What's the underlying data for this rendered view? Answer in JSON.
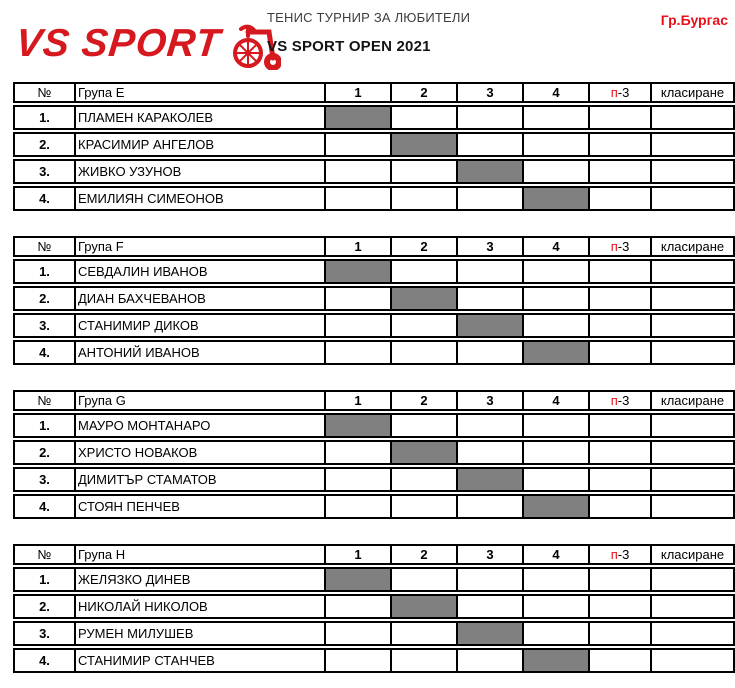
{
  "header": {
    "logo_text": "VS SPORT",
    "tournament_title": "ТЕНИС ТУРНИР ЗА ЛЮБИТЕЛИ",
    "event_title": "VS SPORT OPEN 2021",
    "city": "Гр.Бургас"
  },
  "colors": {
    "brand_red": "#d6181f",
    "accent_red": "#e8101a",
    "grid_black": "#000000",
    "diagonal_gray": "#808080"
  },
  "table": {
    "number_header": "№",
    "match_columns": [
      "1",
      "2",
      "3",
      "4"
    ],
    "points_header_red": "п",
    "points_header_black": "-3",
    "ranking_header": "класиране"
  },
  "groups": [
    {
      "name": "Група E",
      "players": [
        {
          "no": "1.",
          "name": "ПЛАМЕН КАРАКОЛЕВ"
        },
        {
          "no": "2.",
          "name": "КРАСИМИР АНГЕЛОВ"
        },
        {
          "no": "3.",
          "name": "ЖИВКО УЗУНОВ"
        },
        {
          "no": "4.",
          "name": "ЕМИЛИЯН СИМЕОНОВ"
        }
      ]
    },
    {
      "name": "Група F",
      "players": [
        {
          "no": "1.",
          "name": "СЕВДАЛИН ИВАНОВ"
        },
        {
          "no": "2.",
          "name": "ДИАН БАХЧЕВАНОВ"
        },
        {
          "no": "3.",
          "name": "СТАНИМИР ДИКОВ"
        },
        {
          "no": "4.",
          "name": "АНТОНИЙ ИВАНОВ"
        }
      ]
    },
    {
      "name": "Група G",
      "players": [
        {
          "no": "1.",
          "name": "МАУРО МОНТАНАРО"
        },
        {
          "no": "2.",
          "name": "ХРИСТО НОВАКОВ"
        },
        {
          "no": "3.",
          "name": "ДИМИТЪР СТАМАТОВ"
        },
        {
          "no": "4.",
          "name": "СТОЯН ПЕНЧЕВ"
        }
      ]
    },
    {
      "name": "Група H",
      "players": [
        {
          "no": "1.",
          "name": "ЖЕЛЯЗКО ДИНЕВ"
        },
        {
          "no": "2.",
          "name": "НИКОЛАЙ НИКОЛОВ"
        },
        {
          "no": "3.",
          "name": "РУМЕН МИЛУШЕВ"
        },
        {
          "no": "4.",
          "name": "СТАНИМИР СТАНЧЕВ"
        }
      ]
    }
  ]
}
